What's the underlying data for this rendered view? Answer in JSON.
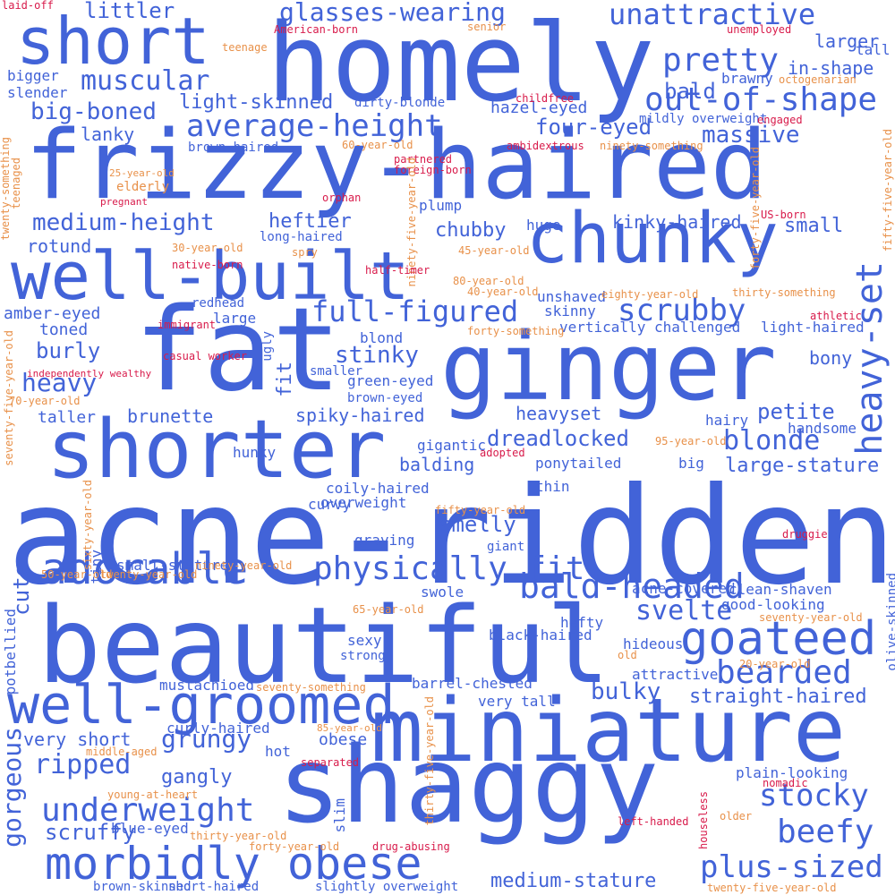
{
  "colors": {
    "primary": "#4263d8",
    "secondary": "#e8914a",
    "tertiary": "#d81b4b"
  },
  "words": [
    {
      "text": "acne-ridden",
      "color": "primary"
    },
    {
      "text": "beautiful",
      "color": "primary"
    },
    {
      "text": "fat",
      "color": "primary"
    },
    {
      "text": "ginger",
      "color": "primary"
    },
    {
      "text": "frizzy-haired",
      "color": "primary"
    },
    {
      "text": "homely",
      "color": "primary"
    },
    {
      "text": "shaggy",
      "color": "primary"
    },
    {
      "text": "miniature",
      "color": "primary"
    },
    {
      "text": "shorter",
      "color": "primary"
    },
    {
      "text": "chunky",
      "color": "primary"
    },
    {
      "text": "well-built",
      "color": "primary"
    },
    {
      "text": "short",
      "color": "primary"
    },
    {
      "text": "well-groomed",
      "color": "primary"
    },
    {
      "text": "goateed",
      "color": "primary"
    },
    {
      "text": "morbidly obese",
      "color": "primary"
    },
    {
      "text": "adorable",
      "color": "primary"
    },
    {
      "text": "physically fit",
      "color": "primary"
    },
    {
      "text": "bald-headed",
      "color": "primary"
    },
    {
      "text": "heavy-set",
      "color": "primary"
    },
    {
      "text": "underweight",
      "color": "primary"
    },
    {
      "text": "plus-sized",
      "color": "primary"
    },
    {
      "text": "bearded",
      "color": "primary"
    },
    {
      "text": "beefy",
      "color": "primary"
    },
    {
      "text": "out-of-shape",
      "color": "primary"
    },
    {
      "text": "average-height",
      "color": "primary"
    },
    {
      "text": "full-figured",
      "color": "primary"
    },
    {
      "text": "unattractive",
      "color": "primary"
    },
    {
      "text": "stocky",
      "color": "primary"
    },
    {
      "text": "scrubby",
      "color": "primary"
    },
    {
      "text": "pretty",
      "color": "primary"
    },
    {
      "text": "ripped",
      "color": "primary"
    },
    {
      "text": "muscular",
      "color": "primary"
    },
    {
      "text": "glasses-wearing",
      "color": "primary"
    },
    {
      "text": "grungy",
      "color": "primary"
    },
    {
      "text": "gorgeous",
      "color": "primary"
    },
    {
      "text": "blonde",
      "color": "primary"
    },
    {
      "text": "svelte",
      "color": "primary"
    },
    {
      "text": "medium-height",
      "color": "primary"
    },
    {
      "text": "big-boned",
      "color": "primary"
    },
    {
      "text": "stinky",
      "color": "primary"
    },
    {
      "text": "heavy",
      "color": "primary"
    },
    {
      "text": "dreadlocked",
      "color": "primary"
    },
    {
      "text": "massive",
      "color": "primary"
    },
    {
      "text": "four-eyed",
      "color": "primary"
    },
    {
      "text": "light-skinned",
      "color": "primary"
    },
    {
      "text": "littler",
      "color": "primary"
    },
    {
      "text": "petite",
      "color": "primary"
    },
    {
      "text": "scruffy",
      "color": "primary"
    },
    {
      "text": "medium-stature",
      "color": "primary"
    },
    {
      "text": "bulky",
      "color": "primary"
    },
    {
      "text": "straight-haired",
      "color": "primary"
    },
    {
      "text": "large-stature",
      "color": "primary"
    },
    {
      "text": "smelly",
      "color": "primary"
    },
    {
      "text": "heftier",
      "color": "primary"
    },
    {
      "text": "chubby",
      "color": "primary"
    },
    {
      "text": "burly",
      "color": "primary"
    },
    {
      "text": "cute",
      "color": "primary"
    },
    {
      "text": "brunette",
      "color": "primary"
    },
    {
      "text": "balding",
      "color": "primary"
    },
    {
      "text": "heavyset",
      "color": "primary"
    },
    {
      "text": "kinky-haired",
      "color": "primary"
    },
    {
      "text": "very short",
      "color": "primary"
    },
    {
      "text": "bald",
      "color": "primary"
    },
    {
      "text": "larger",
      "color": "primary"
    },
    {
      "text": "in-shape",
      "color": "primary"
    },
    {
      "text": "lanky",
      "color": "primary"
    },
    {
      "text": "rotund",
      "color": "primary"
    },
    {
      "text": "small",
      "color": "primary"
    },
    {
      "text": "spiky-haired",
      "color": "primary"
    },
    {
      "text": "gangly",
      "color": "primary"
    },
    {
      "text": "bony",
      "color": "primary"
    },
    {
      "text": "amber-eyed",
      "color": "primary"
    },
    {
      "text": "toned",
      "color": "primary"
    },
    {
      "text": "taller",
      "color": "primary"
    },
    {
      "text": "hazel-eyed",
      "color": "primary"
    },
    {
      "text": "fit",
      "color": "primary"
    },
    {
      "text": "obese",
      "color": "primary"
    },
    {
      "text": "curly-haired",
      "color": "primary"
    },
    {
      "text": "mustachioed",
      "color": "primary"
    },
    {
      "text": "barrel-chested",
      "color": "primary"
    },
    {
      "text": "vertically challenged",
      "color": "primary"
    },
    {
      "text": "light-haired",
      "color": "primary"
    },
    {
      "text": "clean-shaven",
      "color": "primary"
    },
    {
      "text": "good-looking",
      "color": "primary"
    },
    {
      "text": "acne-covered",
      "color": "primary"
    },
    {
      "text": "black-haired",
      "color": "primary"
    },
    {
      "text": "plain-looking",
      "color": "primary"
    },
    {
      "text": "slightly overweight",
      "color": "primary"
    },
    {
      "text": "brown-skinned",
      "color": "primary"
    },
    {
      "text": "short-haired",
      "color": "primary"
    },
    {
      "text": "blue-eyed",
      "color": "primary"
    },
    {
      "text": "overweight",
      "color": "primary"
    },
    {
      "text": "coily-haired",
      "color": "primary"
    },
    {
      "text": "long-haired",
      "color": "primary"
    },
    {
      "text": "ponytailed",
      "color": "primary"
    },
    {
      "text": "gigantic",
      "color": "primary"
    },
    {
      "text": "handsome",
      "color": "primary"
    },
    {
      "text": "very tall",
      "color": "primary"
    },
    {
      "text": "attractive",
      "color": "primary"
    },
    {
      "text": "hideous",
      "color": "primary"
    },
    {
      "text": "hefty",
      "color": "primary"
    },
    {
      "text": "swole",
      "color": "primary"
    },
    {
      "text": "graying",
      "color": "primary"
    },
    {
      "text": "curvy",
      "color": "primary"
    },
    {
      "text": "tiny",
      "color": "primary"
    },
    {
      "text": "small-stature",
      "color": "primary"
    },
    {
      "text": "green-eyed",
      "color": "primary"
    },
    {
      "text": "brown-eyed",
      "color": "primary"
    },
    {
      "text": "brown-haired",
      "color": "primary"
    },
    {
      "text": "dirty-blonde",
      "color": "primary"
    },
    {
      "text": "mildly overweight",
      "color": "primary"
    },
    {
      "text": "brawny",
      "color": "primary"
    },
    {
      "text": "huge",
      "color": "primary"
    },
    {
      "text": "plump",
      "color": "primary"
    },
    {
      "text": "skinny",
      "color": "primary"
    },
    {
      "text": "unshaved",
      "color": "primary"
    },
    {
      "text": "blond",
      "color": "primary"
    },
    {
      "text": "smaller",
      "color": "primary"
    },
    {
      "text": "large",
      "color": "primary"
    },
    {
      "text": "ugly",
      "color": "primary"
    },
    {
      "text": "redhead",
      "color": "primary"
    },
    {
      "text": "elderly",
      "color": "secondary"
    },
    {
      "text": "bigger",
      "color": "primary"
    },
    {
      "text": "slender",
      "color": "primary"
    },
    {
      "text": "tall",
      "color": "primary"
    },
    {
      "text": "hairy",
      "color": "primary"
    },
    {
      "text": "big",
      "color": "primary"
    },
    {
      "text": "thin",
      "color": "primary"
    },
    {
      "text": "giant",
      "color": "primary"
    },
    {
      "text": "sexy",
      "color": "primary"
    },
    {
      "text": "strong",
      "color": "primary"
    },
    {
      "text": "hunky",
      "color": "primary"
    },
    {
      "text": "hot",
      "color": "primary"
    },
    {
      "text": "slim",
      "color": "primary"
    },
    {
      "text": "potbellied",
      "color": "primary"
    },
    {
      "text": "olive-skinned",
      "color": "primary"
    },
    {
      "text": "laid-off",
      "color": "tertiary"
    },
    {
      "text": "American-born",
      "color": "tertiary"
    },
    {
      "text": "senior",
      "color": "secondary"
    },
    {
      "text": "unemployed",
      "color": "tertiary"
    },
    {
      "text": "teenage",
      "color": "secondary"
    },
    {
      "text": "childfree",
      "color": "tertiary"
    },
    {
      "text": "octogenarian",
      "color": "secondary"
    },
    {
      "text": "engaged",
      "color": "tertiary"
    },
    {
      "text": "60-year-old",
      "color": "secondary"
    },
    {
      "text": "ambidextrous",
      "color": "tertiary"
    },
    {
      "text": "ninety-something",
      "color": "secondary"
    },
    {
      "text": "twenty-something",
      "color": "secondary"
    },
    {
      "text": "25-year-old",
      "color": "secondary"
    },
    {
      "text": "teenaged",
      "color": "secondary"
    },
    {
      "text": "pregnant",
      "color": "tertiary"
    },
    {
      "text": "partnered",
      "color": "tertiary"
    },
    {
      "text": "foreign-born",
      "color": "tertiary"
    },
    {
      "text": "ninety-five-year-old",
      "color": "secondary"
    },
    {
      "text": "forty-five-year-old",
      "color": "secondary"
    },
    {
      "text": "fifty-five-year-old",
      "color": "secondary"
    },
    {
      "text": "US-born",
      "color": "tertiary"
    },
    {
      "text": "orphan",
      "color": "tertiary"
    },
    {
      "text": "30-year-old",
      "color": "secondary"
    },
    {
      "text": "native-born",
      "color": "tertiary"
    },
    {
      "text": "45-year-old",
      "color": "secondary"
    },
    {
      "text": "spry",
      "color": "secondary"
    },
    {
      "text": "half-timer",
      "color": "tertiary"
    },
    {
      "text": "80-year-old",
      "color": "secondary"
    },
    {
      "text": "40-year-old",
      "color": "secondary"
    },
    {
      "text": "eighty-year-old",
      "color": "secondary"
    },
    {
      "text": "thirty-something",
      "color": "secondary"
    },
    {
      "text": "immigrant",
      "color": "tertiary"
    },
    {
      "text": "athletic",
      "color": "tertiary"
    },
    {
      "text": "forty-something",
      "color": "secondary"
    },
    {
      "text": "seventy-five-year-old",
      "color": "secondary"
    },
    {
      "text": "casual worker",
      "color": "tertiary"
    },
    {
      "text": "independently wealthy",
      "color": "tertiary"
    },
    {
      "text": "70-year-old",
      "color": "secondary"
    },
    {
      "text": "95-year-old",
      "color": "secondary"
    },
    {
      "text": "adopted",
      "color": "tertiary"
    },
    {
      "text": "sixty-year-old",
      "color": "secondary"
    },
    {
      "text": "fifty-year-old",
      "color": "secondary"
    },
    {
      "text": "druggie",
      "color": "tertiary"
    },
    {
      "text": "50-year-old",
      "color": "secondary"
    },
    {
      "text": "twenty-year-old",
      "color": "secondary"
    },
    {
      "text": "ninety-year-old",
      "color": "secondary"
    },
    {
      "text": "65-year-old",
      "color": "secondary"
    },
    {
      "text": "seventy-year-old",
      "color": "secondary"
    },
    {
      "text": "old",
      "color": "secondary"
    },
    {
      "text": "20-year-old",
      "color": "secondary"
    },
    {
      "text": "seventy-something",
      "color": "secondary"
    },
    {
      "text": "85-year-old",
      "color": "secondary"
    },
    {
      "text": "thirty-five-year-old",
      "color": "secondary"
    },
    {
      "text": "middle-aged",
      "color": "secondary"
    },
    {
      "text": "separated",
      "color": "tertiary"
    },
    {
      "text": "young-at-heart",
      "color": "secondary"
    },
    {
      "text": "nomadic",
      "color": "tertiary"
    },
    {
      "text": "left-handed",
      "color": "tertiary"
    },
    {
      "text": "older",
      "color": "secondary"
    },
    {
      "text": "houseless",
      "color": "tertiary"
    },
    {
      "text": "thirty-year-old",
      "color": "secondary"
    },
    {
      "text": "forty-year-old",
      "color": "secondary"
    },
    {
      "text": "drug-abusing",
      "color": "tertiary"
    },
    {
      "text": "twenty-five-year-old",
      "color": "secondary"
    }
  ]
}
